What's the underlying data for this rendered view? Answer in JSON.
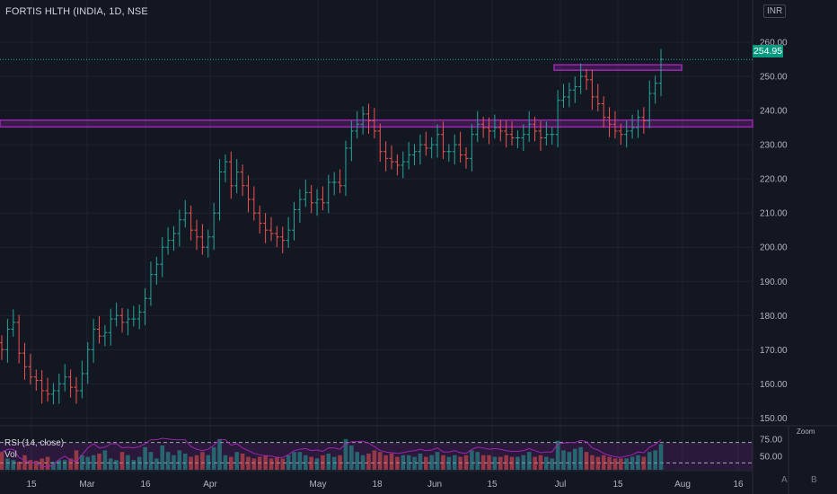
{
  "header": {
    "symbol_title": "FORTIS HLTH (INDIA, 1D, NSE",
    "currency": "INR"
  },
  "last_price_label": "254.95",
  "indicators": {
    "rsi_label": "RSI (14, close)",
    "vol_label": "Vol",
    "rsi_ticks": [
      "75.00",
      "50.00"
    ],
    "zoom_label": "Zoom"
  },
  "scale_buttons": [
    "A",
    "B"
  ],
  "colors": {
    "background": "#131722",
    "up": "#26a69a",
    "down": "#ef5350",
    "zone": "#9c27b0",
    "price_tag": "#089981",
    "rsi_line": "#9c27b0"
  },
  "chart_data": {
    "type": "ohlc",
    "price_axis": {
      "ticks": [
        "150.00",
        "160.00",
        "170.00",
        "180.00",
        "190.00",
        "200.00",
        "210.00",
        "220.00",
        "230.00",
        "240.00",
        "250.00",
        "260.00"
      ],
      "ylim": [
        148,
        265
      ]
    },
    "time_axis": {
      "ticks": [
        "15",
        "Mar",
        "16",
        "Apr",
        "May",
        "18",
        "Jun",
        "15",
        "Jul",
        "15",
        "Aug",
        "16"
      ]
    },
    "last_price": 254.95,
    "zones": [
      {
        "low": 235.2,
        "high": 237.2,
        "extends": "left-to-right"
      },
      {
        "low": 251.8,
        "high": 253.4,
        "extends": "short"
      }
    ],
    "closes": [
      170,
      176,
      178,
      169,
      165,
      162,
      161,
      158,
      157,
      158,
      160,
      162,
      159,
      158,
      163,
      170,
      176,
      174,
      175,
      179,
      180,
      178,
      179,
      179,
      181,
      185,
      192,
      195,
      200,
      202,
      204,
      208,
      210,
      205,
      203,
      200,
      203,
      210,
      222,
      225,
      218,
      222,
      218,
      214,
      210,
      207,
      205,
      204,
      203,
      202,
      205,
      211,
      214,
      216,
      213,
      214,
      213,
      219,
      219,
      218,
      229,
      234,
      236,
      239,
      237,
      234,
      228,
      226,
      225,
      224,
      225,
      227,
      228,
      230,
      229,
      230,
      233,
      228,
      228,
      230,
      227,
      226,
      233,
      236,
      235,
      234,
      235,
      234,
      233,
      232,
      232,
      233,
      236,
      234,
      232,
      233,
      233,
      243,
      244,
      246,
      247,
      250,
      249,
      244,
      242,
      238,
      236,
      234,
      233,
      234,
      235,
      238,
      237,
      245,
      248,
      255
    ],
    "volume_relative": [
      0.55,
      0.35,
      0.3,
      0.25,
      0.45,
      0.3,
      0.28,
      0.35,
      0.4,
      0.25,
      0.3,
      0.3,
      0.35,
      0.6,
      0.45,
      0.4,
      0.45,
      0.5,
      0.6,
      0.35,
      0.3,
      0.55,
      0.45,
      0.3,
      0.4,
      0.7,
      0.55,
      0.35,
      0.75,
      0.55,
      0.45,
      0.6,
      0.5,
      0.4,
      0.45,
      0.55,
      0.45,
      0.7,
      0.95,
      0.45,
      0.4,
      0.55,
      0.5,
      0.4,
      0.35,
      0.4,
      0.45,
      0.35,
      0.4,
      0.35,
      0.45,
      0.55,
      0.55,
      0.45,
      0.4,
      0.35,
      0.45,
      0.5,
      0.4,
      0.45,
      0.95,
      0.75,
      0.55,
      0.45,
      0.5,
      0.6,
      0.55,
      0.45,
      0.5,
      0.4,
      0.45,
      0.45,
      0.4,
      0.5,
      0.4,
      0.45,
      0.55,
      0.45,
      0.4,
      0.45,
      0.4,
      0.45,
      0.6,
      0.55,
      0.45,
      0.45,
      0.4,
      0.4,
      0.45,
      0.4,
      0.4,
      0.45,
      0.55,
      0.4,
      0.45,
      0.4,
      0.35,
      0.9,
      0.6,
      0.55,
      0.65,
      0.7,
      0.55,
      0.45,
      0.4,
      0.45,
      0.4,
      0.35,
      0.35,
      0.35,
      0.4,
      0.45,
      0.4,
      0.55,
      0.6,
      0.8
    ],
    "rsi": [
      56,
      60,
      60,
      48,
      44,
      40,
      40,
      35,
      34,
      37,
      45,
      50,
      44,
      42,
      52,
      62,
      68,
      62,
      63,
      68,
      68,
      62,
      63,
      62,
      64,
      68,
      74,
      74,
      76,
      75,
      74,
      74,
      74,
      64,
      60,
      58,
      60,
      66,
      74,
      74,
      66,
      68,
      62,
      58,
      54,
      52,
      50,
      50,
      48,
      48,
      52,
      58,
      60,
      61,
      58,
      59,
      57,
      62,
      62,
      60,
      68,
      71,
      71,
      72,
      69,
      64,
      58,
      56,
      55,
      54,
      55,
      57,
      58,
      60,
      58,
      59,
      62,
      56,
      56,
      58,
      55,
      54,
      60,
      63,
      62,
      60,
      61,
      60,
      58,
      57,
      57,
      58,
      61,
      58,
      55,
      56,
      56,
      68,
      69,
      70,
      70,
      73,
      71,
      62,
      59,
      54,
      51,
      49,
      48,
      50,
      52,
      56,
      55,
      63,
      67,
      74
    ]
  }
}
